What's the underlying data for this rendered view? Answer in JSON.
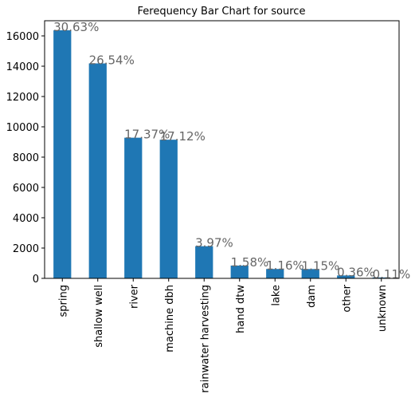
{
  "chart_data": {
    "type": "bar",
    "title": "Ferequency Bar Chart for source",
    "categories": [
      "spring",
      "shallow well",
      "river",
      "machine dbh",
      "rainwater harvesting",
      "hand dtw",
      "lake",
      "dam",
      "other",
      "unknown"
    ],
    "values": [
      16370,
      14184,
      9283,
      9149,
      2122,
      844,
      620,
      615,
      192,
      59
    ],
    "annotations": [
      "30.63%",
      "26.54%",
      "17.37%",
      "17.12%",
      "3.97%",
      "1.58%",
      "1.16%",
      "1.15%",
      "0.36%",
      "0.11%"
    ],
    "color": "#1f77b4",
    "ylim": [
      0,
      17000
    ],
    "yticks": [
      0,
      2000,
      4000,
      6000,
      8000,
      10000,
      12000,
      14000,
      16000
    ],
    "grid": false
  }
}
